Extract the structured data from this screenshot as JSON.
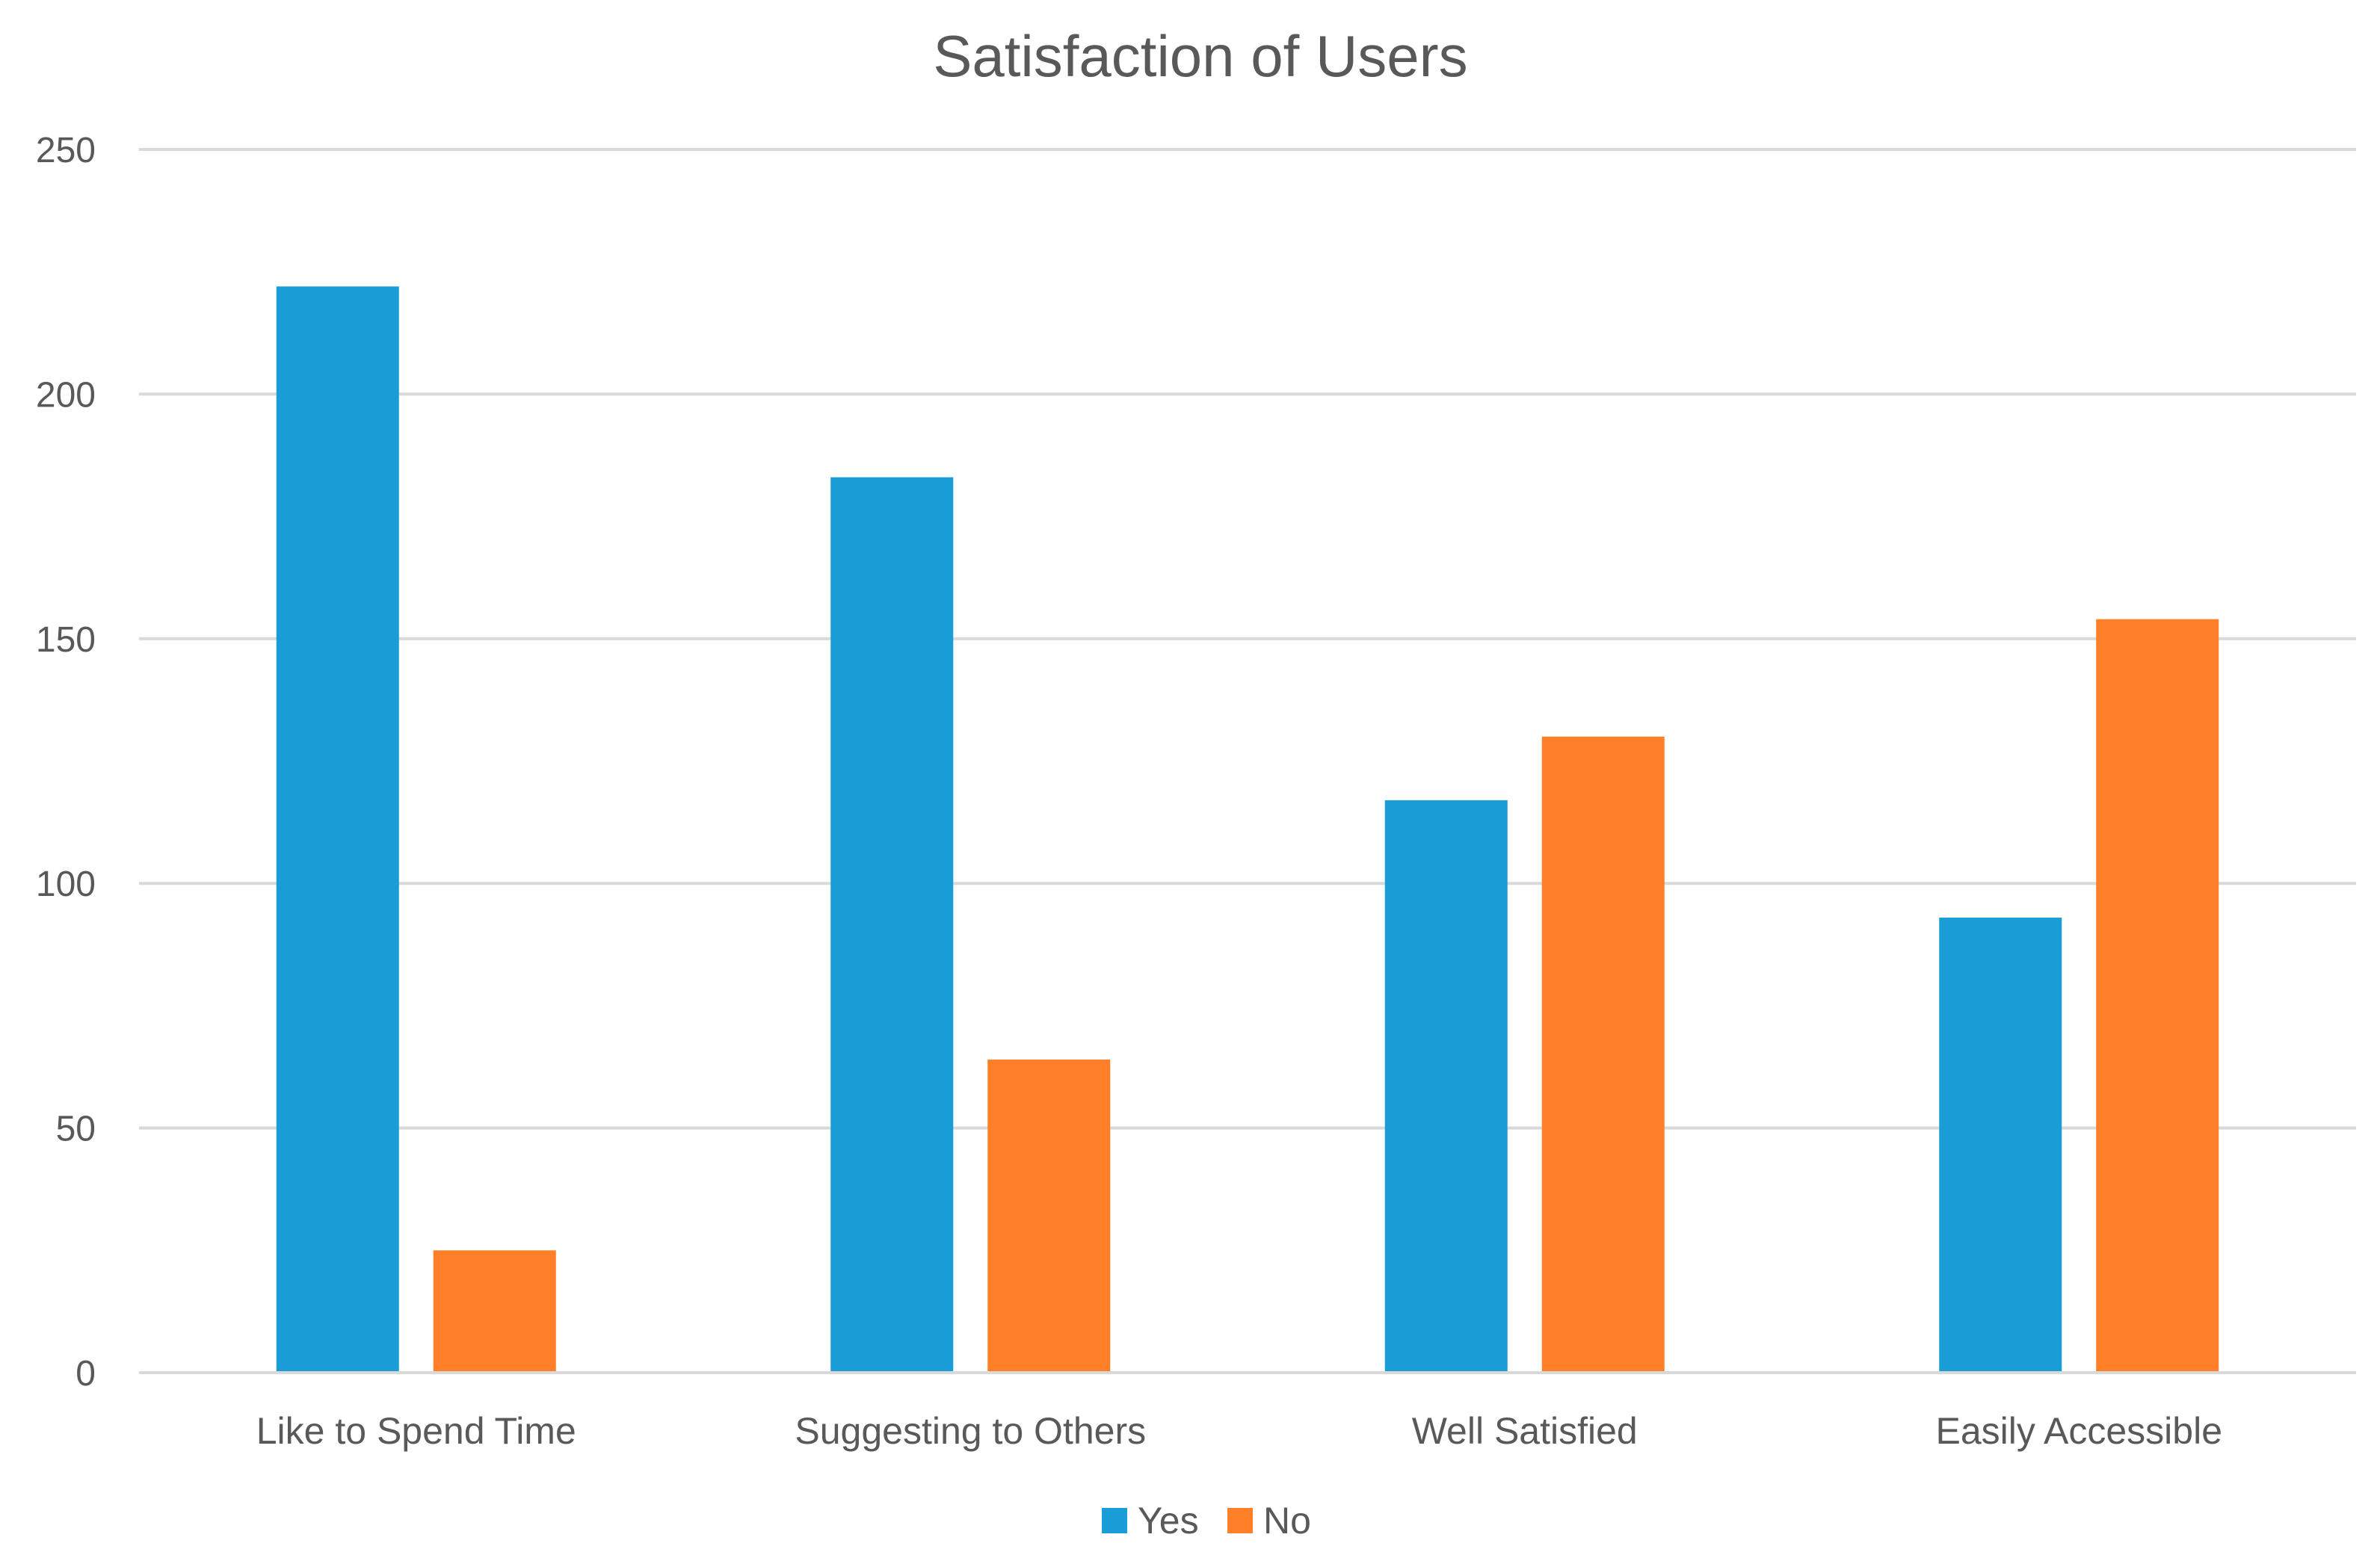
{
  "chart_data": {
    "type": "bar",
    "title": "Satisfaction of Users",
    "xlabel": "",
    "ylabel": "",
    "ylim": [
      0,
      250
    ],
    "yticks": [
      0,
      50,
      100,
      150,
      200,
      250
    ],
    "ytick_labels": [
      "0",
      "50",
      "100",
      "150",
      "200",
      "250"
    ],
    "grid": true,
    "legend_position": "bottom",
    "categories": [
      "Like to Spend Time",
      "Suggesting to Others",
      "Well Satisfied",
      "Easily Accessible"
    ],
    "series": [
      {
        "name": "Yes",
        "color": "#1a9cd7",
        "values": [
          222,
          183,
          117,
          93
        ]
      },
      {
        "name": "No",
        "color": "#fe7f27",
        "values": [
          25,
          64,
          130,
          154
        ]
      }
    ]
  }
}
